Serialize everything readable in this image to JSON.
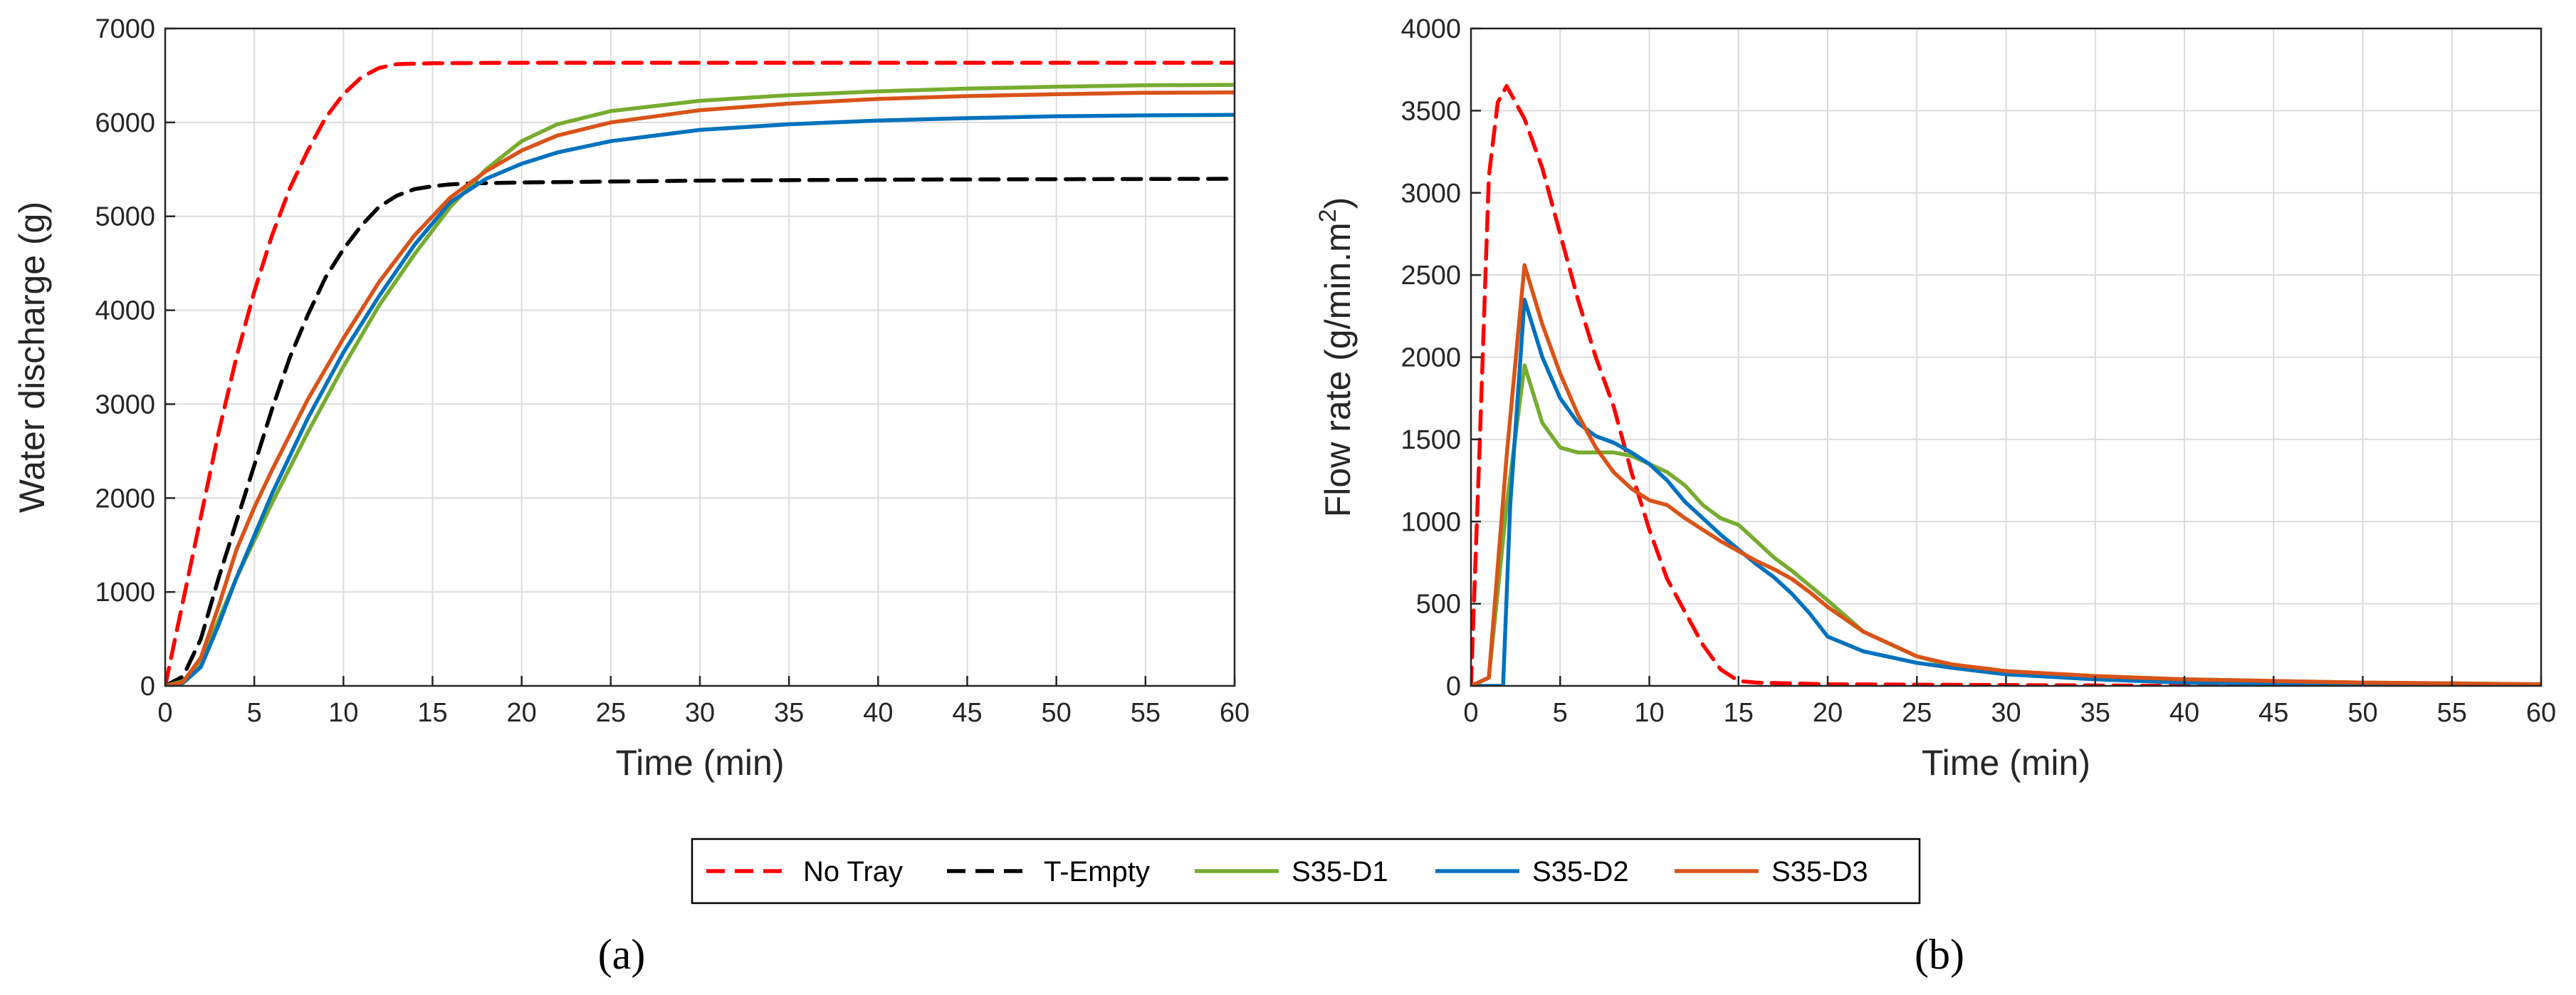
{
  "chart_data": [
    {
      "type": "line",
      "panel_label": "(a)",
      "title": "",
      "xlabel": "Time (min)",
      "ylabel": "Water discharge (g)",
      "xlim": [
        0,
        60
      ],
      "ylim": [
        0,
        7000
      ],
      "xticks": [
        0,
        5,
        10,
        15,
        20,
        25,
        30,
        35,
        40,
        45,
        50,
        55,
        60
      ],
      "yticks": [
        0,
        1000,
        2000,
        3000,
        4000,
        5000,
        6000,
        7000
      ],
      "grid": true,
      "series": [
        {
          "name": "No Tray",
          "color": "#ff0000",
          "dash": "dashed",
          "x": [
            0,
            1,
            2,
            3,
            4,
            5,
            6,
            7,
            8,
            9,
            10,
            11,
            12,
            13,
            14,
            15,
            20,
            30,
            40,
            50,
            60
          ],
          "y": [
            0,
            900,
            1800,
            2700,
            3500,
            4200,
            4800,
            5300,
            5700,
            6050,
            6300,
            6480,
            6580,
            6620,
            6625,
            6630,
            6635,
            6635,
            6635,
            6635,
            6635
          ]
        },
        {
          "name": "T-Empty",
          "color": "#000000",
          "dash": "dashed",
          "x": [
            0,
            1,
            2,
            3,
            4,
            5,
            6,
            7,
            8,
            9,
            10,
            11,
            12,
            13,
            14,
            15,
            16,
            17,
            20,
            30,
            40,
            50,
            60
          ],
          "y": [
            0,
            100,
            500,
            1150,
            1750,
            2350,
            2950,
            3500,
            3950,
            4350,
            4650,
            4900,
            5100,
            5220,
            5290,
            5320,
            5340,
            5350,
            5360,
            5380,
            5390,
            5395,
            5400
          ]
        },
        {
          "name": "S35-D1",
          "color": "#77ac30",
          "dash": "solid",
          "x": [
            0,
            1,
            2,
            3,
            4,
            5,
            6,
            8,
            10,
            12,
            14,
            16,
            18,
            20,
            22,
            25,
            30,
            35,
            40,
            45,
            50,
            55,
            60
          ],
          "y": [
            0,
            50,
            250,
            700,
            1150,
            1550,
            1950,
            2700,
            3400,
            4050,
            4600,
            5100,
            5500,
            5800,
            5980,
            6120,
            6230,
            6290,
            6330,
            6360,
            6380,
            6395,
            6400
          ]
        },
        {
          "name": "S35-D2",
          "color": "#0072bd",
          "dash": "solid",
          "x": [
            0,
            1,
            2,
            3,
            4,
            5,
            6,
            8,
            10,
            12,
            14,
            16,
            18,
            20,
            22,
            25,
            30,
            35,
            40,
            45,
            50,
            55,
            60
          ],
          "y": [
            0,
            30,
            200,
            650,
            1150,
            1600,
            2050,
            2850,
            3550,
            4150,
            4700,
            5150,
            5400,
            5560,
            5680,
            5800,
            5920,
            5980,
            6020,
            6045,
            6065,
            6075,
            6080
          ]
        },
        {
          "name": "S35-D3",
          "color": "#d95319",
          "dash": "solid",
          "x": [
            0,
            1,
            2,
            3,
            4,
            5,
            6,
            8,
            10,
            12,
            14,
            16,
            18,
            20,
            22,
            25,
            30,
            35,
            40,
            45,
            50,
            55,
            60
          ],
          "y": [
            0,
            40,
            300,
            850,
            1450,
            1900,
            2300,
            3050,
            3700,
            4300,
            4800,
            5200,
            5480,
            5700,
            5860,
            6000,
            6130,
            6200,
            6250,
            6280,
            6300,
            6315,
            6320
          ]
        }
      ]
    },
    {
      "type": "line",
      "panel_label": "(b)",
      "title": "",
      "xlabel": "Time (min)",
      "ylabel": "Flow rate (g/min.m",
      "ylabel_superscript": "2",
      "ylabel_suffix": ")",
      "xlim": [
        0,
        60
      ],
      "ylim": [
        0,
        4000
      ],
      "xticks": [
        0,
        5,
        10,
        15,
        20,
        25,
        30,
        35,
        40,
        45,
        50,
        55,
        60
      ],
      "yticks": [
        0,
        500,
        1000,
        1500,
        2000,
        2500,
        3000,
        3500,
        4000
      ],
      "grid": true,
      "series": [
        {
          "name": "No Tray",
          "color": "#ff0000",
          "dash": "dashed",
          "x": [
            0,
            0.5,
            1,
            1.5,
            2,
            3,
            4,
            5,
            6,
            7,
            8,
            9,
            10,
            11,
            12,
            13,
            14,
            15,
            16,
            20,
            30,
            40,
            50,
            60
          ],
          "y": [
            0,
            1500,
            3100,
            3550,
            3650,
            3450,
            3150,
            2750,
            2350,
            2000,
            1700,
            1300,
            950,
            650,
            450,
            250,
            100,
            30,
            20,
            10,
            5,
            0,
            0,
            0
          ]
        },
        {
          "name": "S35-D1",
          "color": "#77ac30",
          "dash": "solid",
          "x": [
            0,
            1,
            2,
            3,
            4,
            5,
            6,
            7,
            8,
            9,
            10,
            11,
            12,
            13,
            14,
            15,
            16,
            17,
            18,
            19,
            20,
            22,
            25,
            27,
            30,
            35,
            40,
            45,
            50,
            55,
            60
          ],
          "y": [
            0,
            50,
            1100,
            1950,
            1600,
            1450,
            1420,
            1420,
            1420,
            1400,
            1350,
            1300,
            1220,
            1100,
            1020,
            980,
            880,
            780,
            700,
            610,
            520,
            330,
            180,
            120,
            80,
            60,
            40,
            30,
            20,
            15,
            10
          ]
        },
        {
          "name": "S35-D2",
          "color": "#0072bd",
          "dash": "solid",
          "x": [
            0,
            1.5,
            1.8,
            2.2,
            3,
            4,
            5,
            6,
            7,
            8,
            9,
            10,
            11,
            12,
            13,
            14,
            15,
            16,
            17,
            18,
            19,
            20,
            22,
            25,
            27,
            30,
            35,
            40,
            45,
            50,
            55,
            60
          ],
          "y": [
            0,
            0,
            0,
            1100,
            2350,
            2000,
            1750,
            1600,
            1520,
            1480,
            1420,
            1350,
            1250,
            1120,
            1020,
            920,
            830,
            740,
            660,
            560,
            440,
            300,
            210,
            140,
            110,
            70,
            40,
            20,
            15,
            10,
            10,
            5
          ]
        },
        {
          "name": "S35-D3",
          "color": "#d95319",
          "dash": "solid",
          "x": [
            0,
            1,
            2,
            3,
            4,
            5,
            6,
            7,
            8,
            9,
            10,
            11,
            12,
            13,
            14,
            15,
            16,
            17,
            18,
            19,
            20,
            22,
            25,
            27,
            30,
            35,
            40,
            45,
            50,
            55,
            60
          ],
          "y": [
            0,
            50,
            1400,
            2560,
            2200,
            1900,
            1650,
            1450,
            1300,
            1200,
            1130,
            1100,
            1020,
            950,
            880,
            820,
            760,
            710,
            650,
            570,
            480,
            330,
            180,
            130,
            90,
            60,
            40,
            30,
            20,
            15,
            10
          ]
        }
      ]
    }
  ],
  "legend": {
    "placement": "bottom-center",
    "entries": [
      {
        "name": "No Tray",
        "color": "#ff0000",
        "dash": "dashed"
      },
      {
        "name": "T-Empty",
        "color": "#000000",
        "dash": "dashed"
      },
      {
        "name": "S35-D1",
        "color": "#77ac30",
        "dash": "solid"
      },
      {
        "name": "S35-D2",
        "color": "#0072bd",
        "dash": "solid"
      },
      {
        "name": "S35-D3",
        "color": "#d95319",
        "dash": "solid"
      }
    ]
  }
}
